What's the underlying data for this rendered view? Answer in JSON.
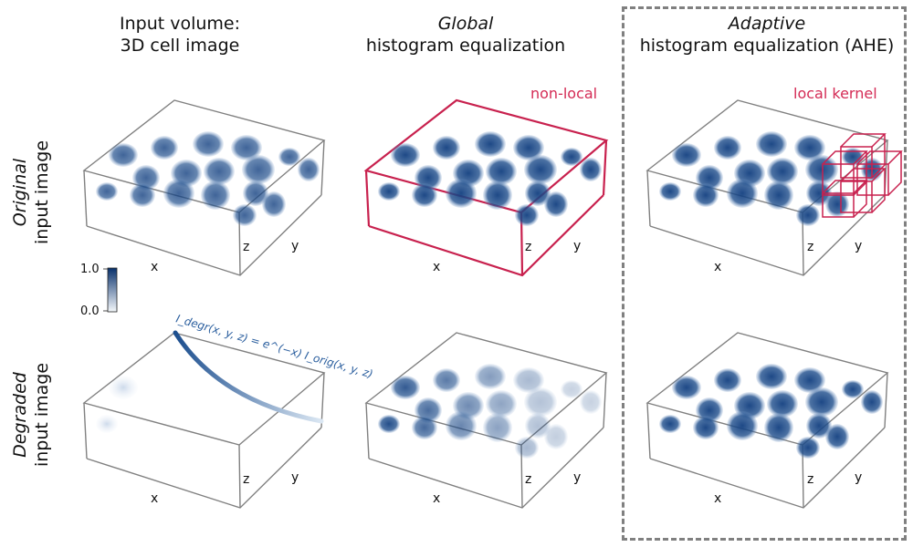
{
  "columns": [
    {
      "line1": "Input volume:",
      "line2": "3D cell image"
    },
    {
      "line1_italic": "Global",
      "line2": "histogram equalization"
    },
    {
      "line1_italic": "Adaptive",
      "line2": "histogram equalization (AHE)"
    }
  ],
  "rows": [
    {
      "italic": "Original",
      "rest": "input image"
    },
    {
      "italic": "Degraded",
      "rest": "input image"
    }
  ],
  "axes": {
    "x": "x",
    "y": "y",
    "z": "z"
  },
  "annotations": {
    "non_local": "non-local",
    "local_kernel": "local kernel",
    "formula": "I_degr(x, y, z) = e^(−x) I_orig(x, y, z)"
  },
  "colorbar": {
    "max": "1.0",
    "min": "0.0"
  },
  "colors": {
    "cell": "#1f4e8c",
    "box_edge": "#808080",
    "highlight": "#c8214e",
    "dashed_border": "#808080"
  }
}
